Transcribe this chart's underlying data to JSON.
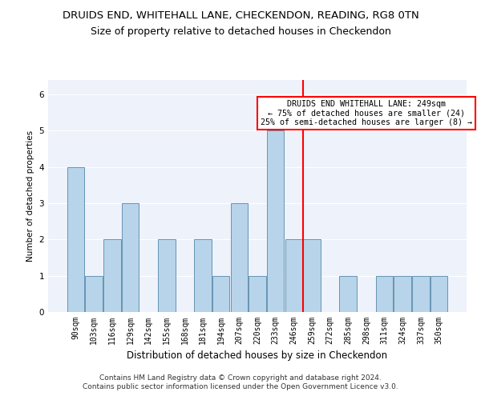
{
  "title": "DRUIDS END, WHITEHALL LANE, CHECKENDON, READING, RG8 0TN",
  "subtitle": "Size of property relative to detached houses in Checkendon",
  "xlabel": "Distribution of detached houses by size in Checkendon",
  "ylabel": "Number of detached properties",
  "footer_line1": "Contains HM Land Registry data © Crown copyright and database right 2024.",
  "footer_line2": "Contains public sector information licensed under the Open Government Licence v3.0.",
  "categories": [
    "90sqm",
    "103sqm",
    "116sqm",
    "129sqm",
    "142sqm",
    "155sqm",
    "168sqm",
    "181sqm",
    "194sqm",
    "207sqm",
    "220sqm",
    "233sqm",
    "246sqm",
    "259sqm",
    "272sqm",
    "285sqm",
    "298sqm",
    "311sqm",
    "324sqm",
    "337sqm",
    "350sqm"
  ],
  "values": [
    4,
    1,
    2,
    3,
    0,
    2,
    0,
    2,
    1,
    3,
    1,
    5,
    2,
    2,
    0,
    1,
    0,
    1,
    1,
    1,
    1
  ],
  "bar_color": "#b8d4ea",
  "bar_edge_color": "#5588aa",
  "vline_index": 12,
  "marker_label": "DRUIDS END WHITEHALL LANE: 249sqm",
  "marker_smaller_pct": "← 75% of detached houses are smaller (24)",
  "marker_larger_pct": "25% of semi-detached houses are larger (8) →",
  "marker_color": "red",
  "ylim": [
    0,
    6.4
  ],
  "yticks": [
    0,
    1,
    2,
    3,
    4,
    5,
    6
  ],
  "bg_color": "#eef2fb",
  "title_fontsize": 9.5,
  "subtitle_fontsize": 9,
  "xlabel_fontsize": 8.5,
  "ylabel_fontsize": 7.5,
  "tick_fontsize": 7,
  "footer_fontsize": 6.5
}
